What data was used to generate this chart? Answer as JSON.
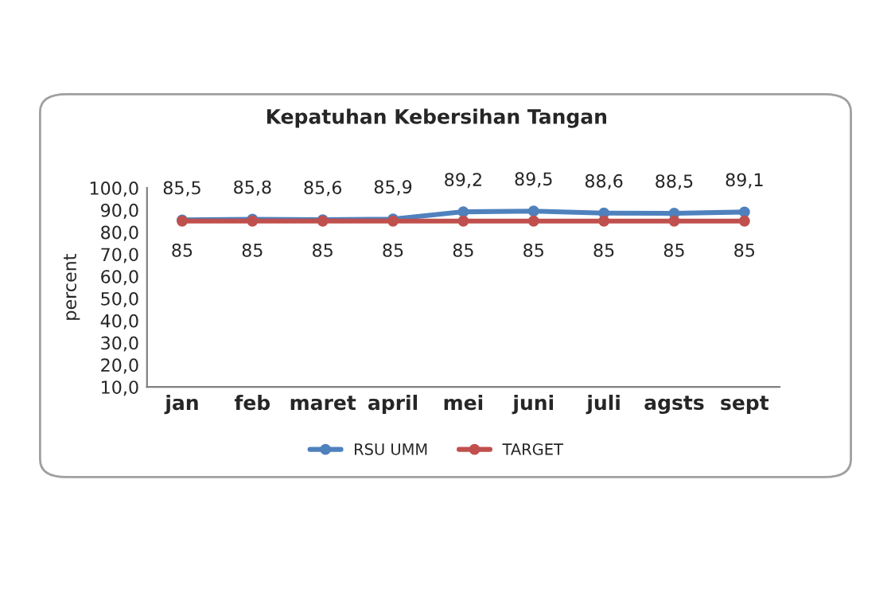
{
  "chart_data": {
    "type": "line",
    "title": "Kepatuhan Kebersihan Tangan",
    "ylabel": "percent",
    "categories": [
      "jan",
      "feb",
      "maret",
      "april",
      "mei",
      "juni",
      "juli",
      "agsts",
      "sept"
    ],
    "series": [
      {
        "name": "RSU UMM",
        "color": "#4f81bd",
        "values": [
          85.5,
          85.8,
          85.6,
          85.9,
          89.2,
          89.5,
          88.6,
          88.5,
          89.1
        ],
        "value_labels": [
          "85,5",
          "85,8",
          "85,6",
          "85,9",
          "89,2",
          "89,5",
          "88,6",
          "88,5",
          "89,1"
        ]
      },
      {
        "name": "TARGET",
        "color": "#c0504d",
        "values": [
          85,
          85,
          85,
          85,
          85,
          85,
          85,
          85,
          85
        ],
        "value_labels": [
          "85",
          "85",
          "85",
          "85",
          "85",
          "85",
          "85",
          "85",
          "85"
        ]
      }
    ],
    "ylim": [
      10,
      100
    ],
    "yticks": [
      {
        "value": 10,
        "label": "10,0"
      },
      {
        "value": 20,
        "label": "20,0"
      },
      {
        "value": 30,
        "label": "30,0"
      },
      {
        "value": 40,
        "label": "40,0"
      },
      {
        "value": 50,
        "label": "50,0"
      },
      {
        "value": 60,
        "label": "60,0"
      },
      {
        "value": 70,
        "label": "70,0"
      },
      {
        "value": 80,
        "label": "80,0"
      },
      {
        "value": 90,
        "label": "90,0"
      },
      {
        "value": 100,
        "label": "100,0"
      }
    ],
    "grid": false,
    "legend": "bottom",
    "marker": "circle",
    "line_style": "solid"
  }
}
